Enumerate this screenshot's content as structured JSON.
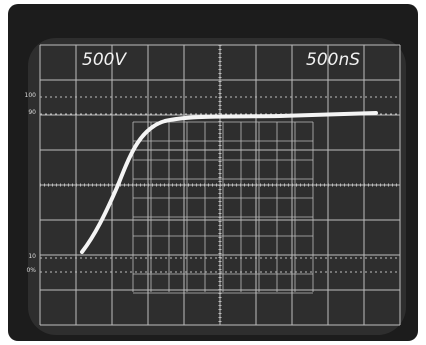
{
  "screen": {
    "volts_per_div": "500V",
    "time_per_div": "500nS",
    "graticule_labels": [
      "100",
      "90",
      "10",
      "0%"
    ]
  }
}
